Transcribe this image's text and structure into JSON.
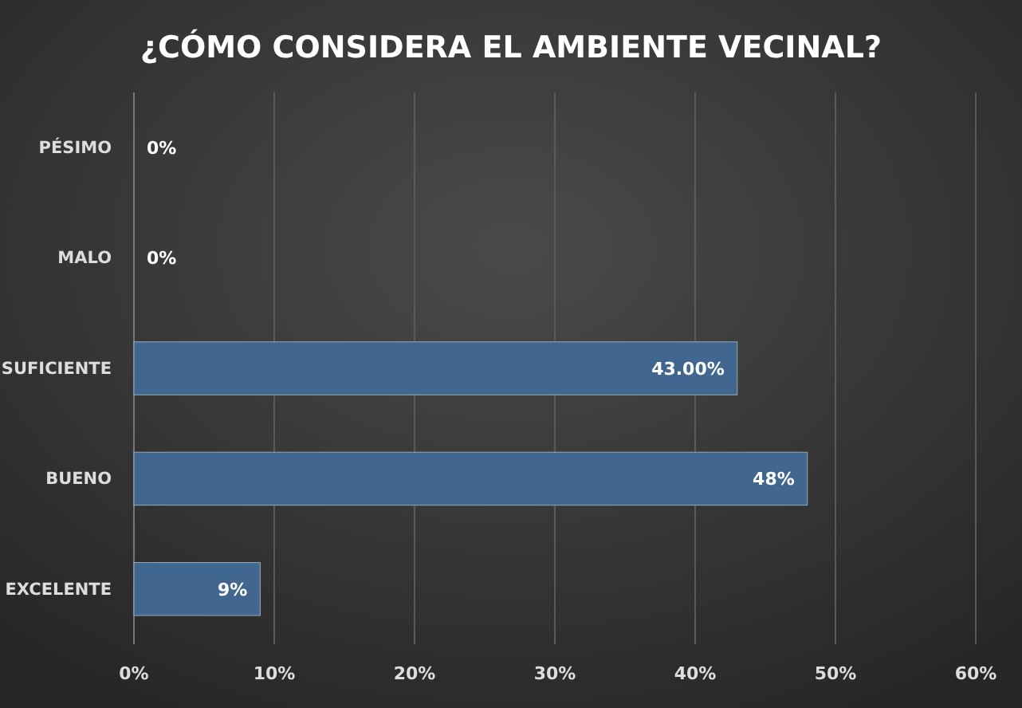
{
  "chart_data": {
    "type": "bar",
    "orientation": "horizontal",
    "title": "¿CÓMO CONSIDERA EL AMBIENTE VECINAL?",
    "categories": [
      "PÉSIMO",
      "MALO",
      "SUFICIENTE",
      "BUENO",
      "EXCELENTE"
    ],
    "values": [
      0,
      0,
      43,
      48,
      9
    ],
    "value_labels": [
      "0%",
      "0%",
      "43.00%",
      "48%",
      "9%"
    ],
    "color": "#41668f",
    "xlim": [
      0,
      60
    ],
    "xticks": [
      {
        "value": 0,
        "label": "0%"
      },
      {
        "value": 10,
        "label": "10%"
      },
      {
        "value": 20,
        "label": "20%"
      },
      {
        "value": 30,
        "label": "30%"
      },
      {
        "value": 40,
        "label": "40%"
      },
      {
        "value": 50,
        "label": "50%"
      },
      {
        "value": 60,
        "label": "60%"
      }
    ],
    "grid": "x"
  }
}
